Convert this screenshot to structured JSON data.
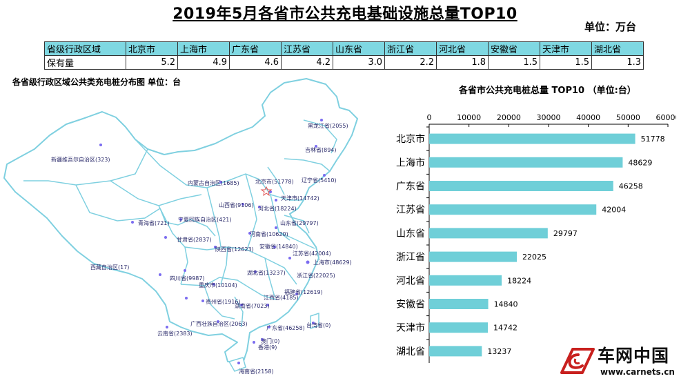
{
  "title": "2019年5月各省市公共充电基础设施总量TOP10",
  "unit": "单位：万台",
  "table": {
    "header_label": "省级行政区域",
    "value_label": "保有量",
    "regions": [
      "北京市",
      "上海市",
      "广东省",
      "江苏省",
      "山东省",
      "浙江省",
      "河北省",
      "安徽省",
      "天津市",
      "湖北省"
    ],
    "values": [
      "5.2",
      "4.9",
      "4.6",
      "4.2",
      "3.0",
      "2.2",
      "1.8",
      "1.5",
      "1.5",
      "1.3"
    ]
  },
  "map": {
    "title": "各省级行政区域公共类充电桩分布图   单位：台",
    "labels": [
      {
        "text": "新疆维吾尔自治区(323)"
      },
      {
        "text": "西藏自治区(17)"
      },
      {
        "text": "青海省(721)"
      },
      {
        "text": "甘肃省(2837)"
      },
      {
        "text": "宁夏回族自治区(421)"
      },
      {
        "text": "内蒙古自治区(1685)"
      },
      {
        "text": "黑龙江省(2055)"
      },
      {
        "text": "吉林省(894)"
      },
      {
        "text": "辽宁省(5410)"
      },
      {
        "text": "北京市(51778)"
      },
      {
        "text": "天津市(14742)"
      },
      {
        "text": "河北省(18224)"
      },
      {
        "text": "山西省(9106)"
      },
      {
        "text": "山东省(29797)"
      },
      {
        "text": "河南省(10620)"
      },
      {
        "text": "陕西省(12623)"
      },
      {
        "text": "安徽省(14840)"
      },
      {
        "text": "江苏省(42004)"
      },
      {
        "text": "上海市(48629)"
      },
      {
        "text": "浙江省(22025)"
      },
      {
        "text": "湖北省(13237)"
      },
      {
        "text": "四川省(9987)"
      },
      {
        "text": "重庆市(10104)"
      },
      {
        "text": "贵州省(1916)"
      },
      {
        "text": "湖南省(7023)"
      },
      {
        "text": "江西省(4185)"
      },
      {
        "text": "福建省(12619)"
      },
      {
        "text": "广西壮族自治区(2063)"
      },
      {
        "text": "云南省(2383)"
      },
      {
        "text": "广东省(46258)"
      },
      {
        "text": "台湾省(0)"
      },
      {
        "text": "澳门(0)"
      },
      {
        "text": "香港(9)"
      },
      {
        "text": "海南省(2158)"
      }
    ]
  },
  "chart_data": {
    "type": "bar",
    "orientation": "horizontal",
    "title": "各省市公共充电桩总量 TOP10   （单位:台）",
    "categories": [
      "北京市",
      "上海市",
      "广东省",
      "江苏省",
      "山东省",
      "浙江省",
      "河北省",
      "安徽省",
      "天津市",
      "湖北省"
    ],
    "values": [
      51778,
      48629,
      46258,
      42004,
      29797,
      22025,
      18224,
      14840,
      14742,
      13237
    ],
    "xlim": [
      0,
      60000
    ],
    "xticks": [
      "0",
      "10000",
      "20000",
      "30000",
      "40000",
      "50000",
      "60000"
    ],
    "axis_position": "top",
    "bar_color": "#6fcfd8",
    "grid": false,
    "legend": "none"
  },
  "logo": {
    "name": "车网中国",
    "url": "www.carnets.cn",
    "color": "#c8201e"
  }
}
